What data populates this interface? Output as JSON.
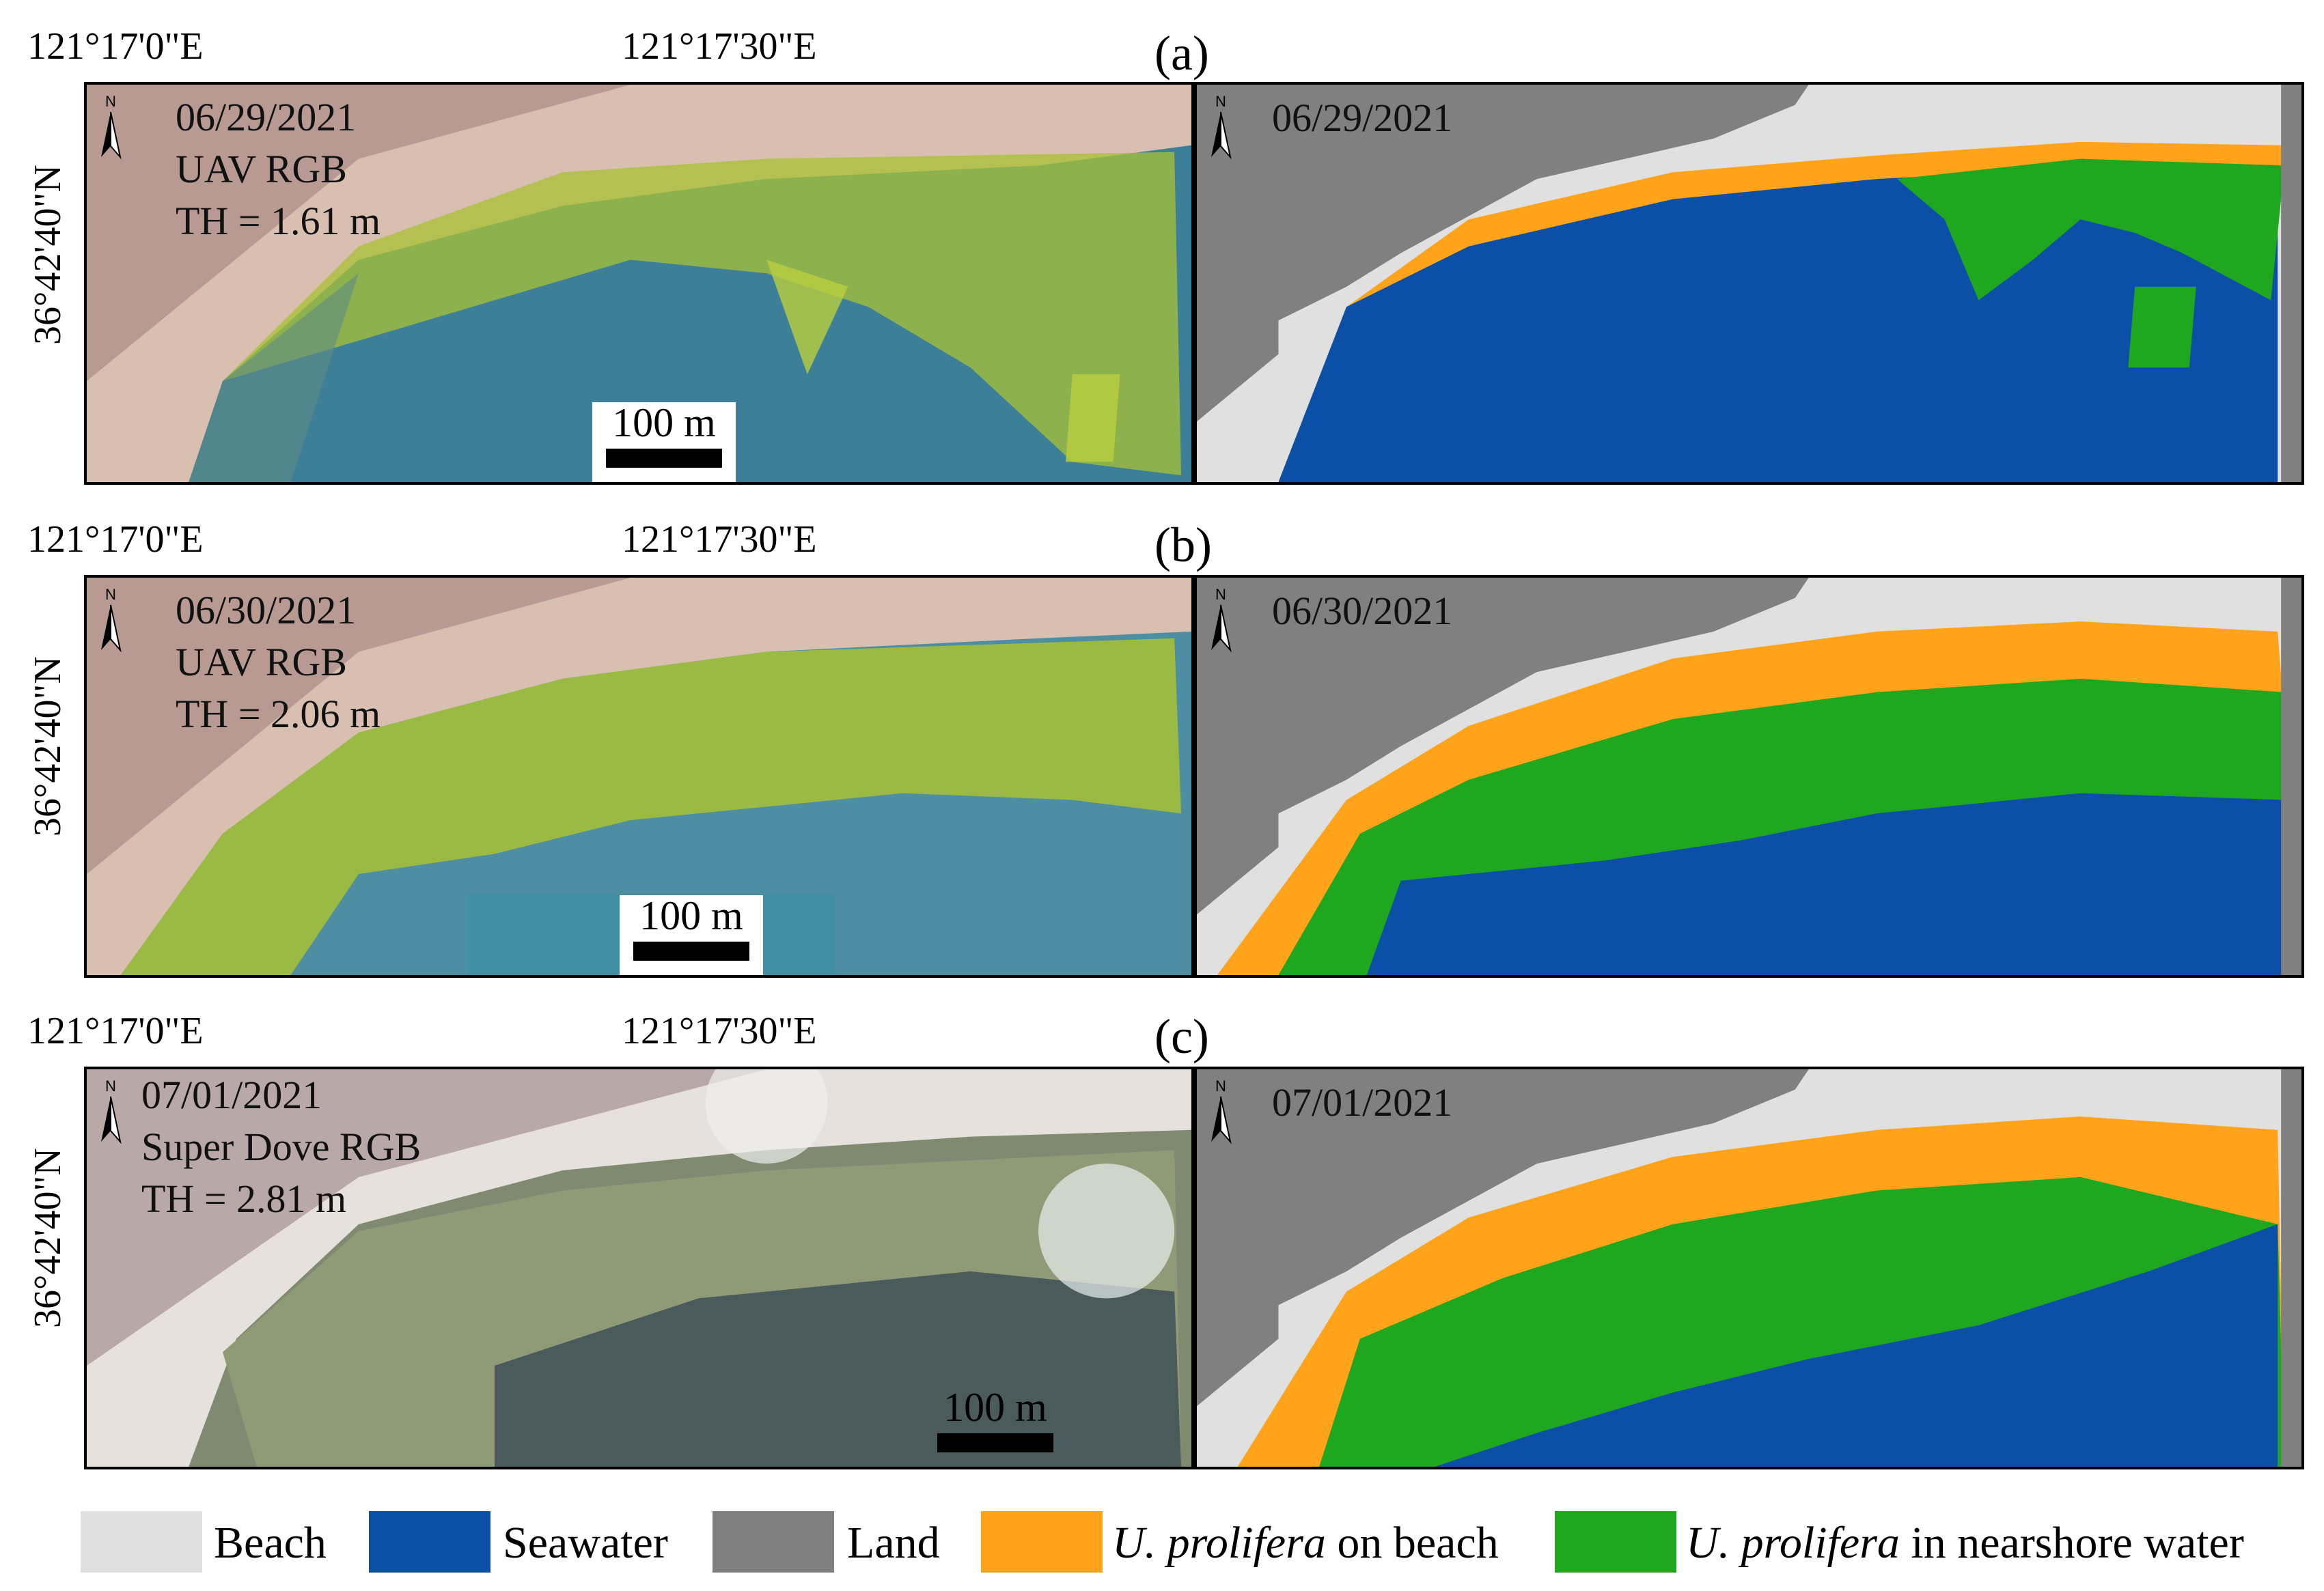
{
  "coordinates": {
    "lon_left": "121°17'0\"E",
    "lon_right": "121°17'30\"E",
    "lat": "36°42'40\"N"
  },
  "panels": [
    {
      "letter": "(a)",
      "date": "06/29/2021",
      "sensor": "UAV RGB",
      "tide": "TH = 1.61 m",
      "scale": "100 m"
    },
    {
      "letter": "(b)",
      "date": "06/30/2021",
      "sensor": "UAV RGB",
      "tide": "TH = 2.06 m",
      "scale": "100 m"
    },
    {
      "letter": "(c)",
      "date": "07/01/2021",
      "sensor": "Super Dove RGB",
      "tide": "TH = 2.81 m",
      "scale": "100 m"
    }
  ],
  "north_label": "N",
  "legend": {
    "beach": "Beach",
    "seawater": "Seawater",
    "land": "Land",
    "u_prolifera": "U. prolifera",
    "on_beach": "on beach",
    "in_nearshore": "in nearshore water"
  },
  "colors": {
    "beach": "#e0e0e0",
    "seawater": "#0b4fa6",
    "land": "#808080",
    "u_beach": "#ffa31a",
    "u_water": "#1fa81f",
    "sand": "#d6b8a8",
    "sea_photo": "#3d7f98",
    "algae_photo": "#a8c233"
  }
}
